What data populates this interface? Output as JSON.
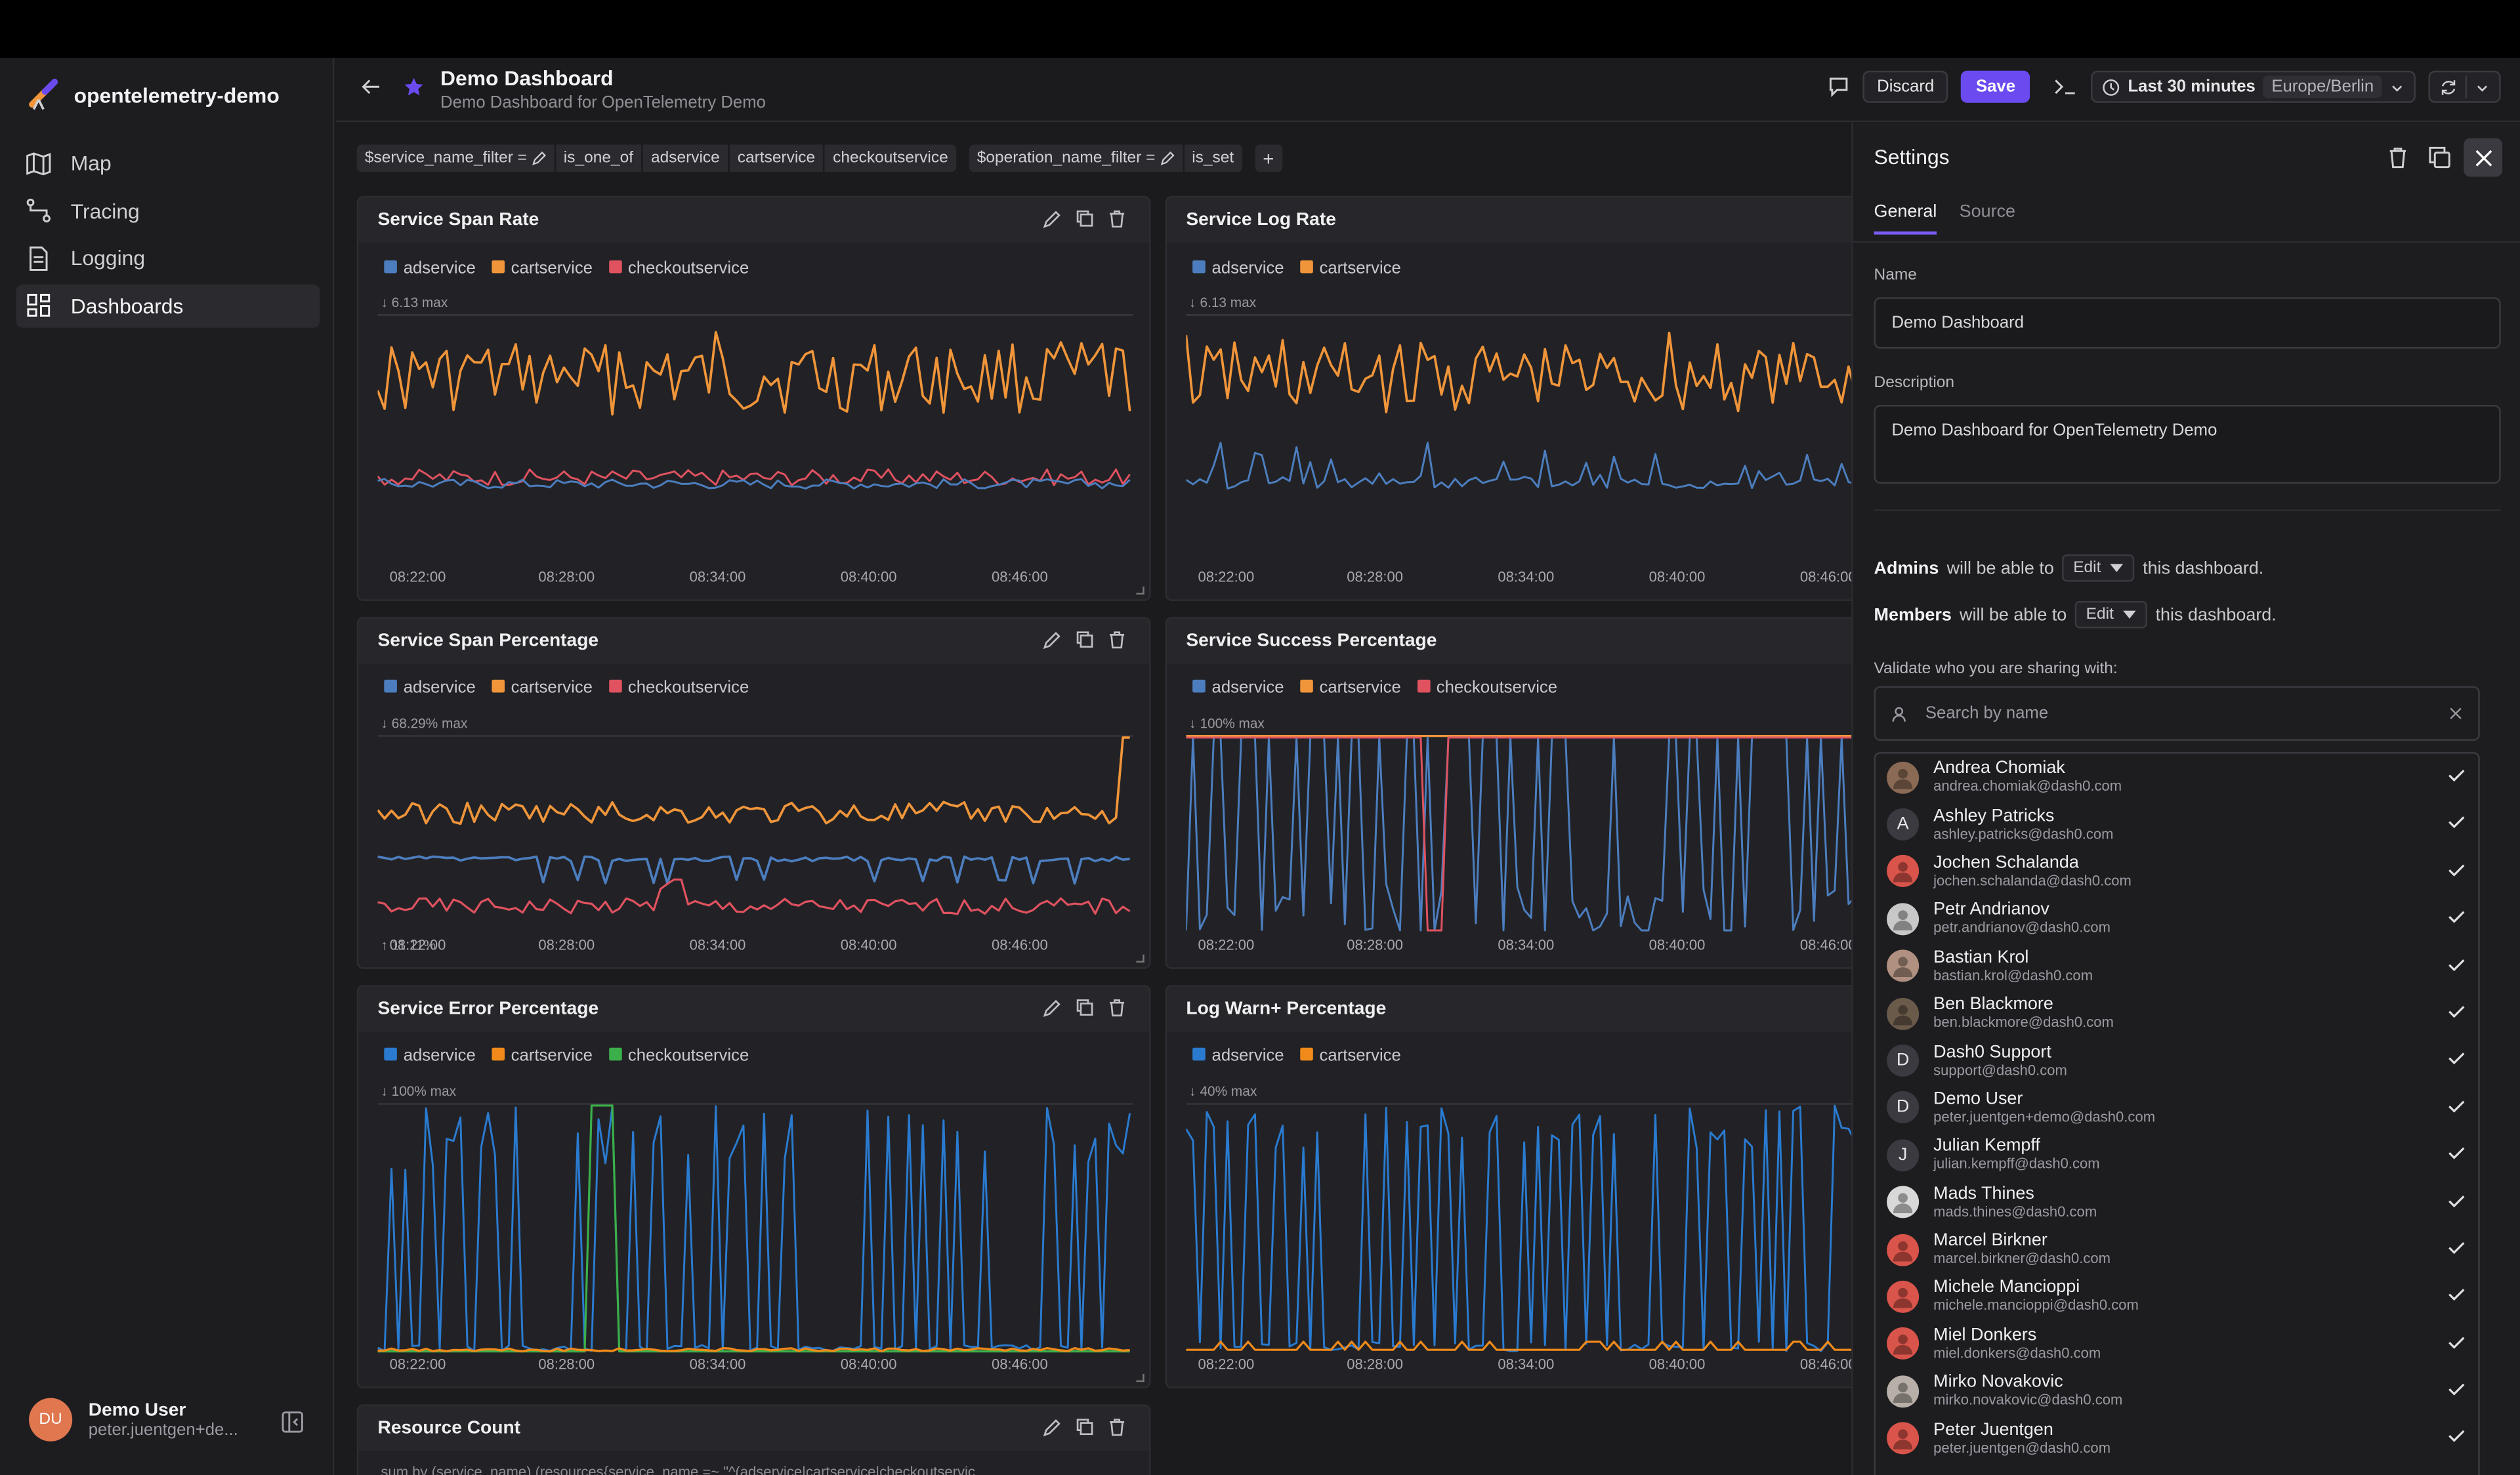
{
  "org_name": "opentelemetry-demo",
  "nav": [
    {
      "label": "Map",
      "icon": "map-icon"
    },
    {
      "label": "Tracing",
      "icon": "tracing-icon"
    },
    {
      "label": "Logging",
      "icon": "logging-icon"
    },
    {
      "label": "Dashboards",
      "icon": "dashboards-icon",
      "active": true
    }
  ],
  "current_user": {
    "name": "Demo User",
    "email": "peter.juentgen+de...",
    "initials": "DU"
  },
  "header": {
    "title": "Demo Dashboard",
    "subtitle": "Demo Dashboard for OpenTelemetry Demo",
    "discard_label": "Discard",
    "save_label": "Save",
    "time_range": "Last 30 minutes",
    "timezone": "Europe/Berlin"
  },
  "filters": {
    "f1": {
      "var": "$service_name_filter =",
      "op": "is_one_of",
      "values": [
        "adservice",
        "cartservice",
        "checkoutservice"
      ]
    },
    "f2": {
      "var": "$operation_name_filter =",
      "op": "is_set"
    }
  },
  "panels": [
    {
      "title": "Service Span Rate",
      "legend": [
        "adservice",
        "cartservice",
        "checkoutservice"
      ],
      "max": "6.13 max"
    },
    {
      "title": "Service Log Rate",
      "legend": [
        "adservice",
        "cartservice"
      ],
      "max": "6.13 max"
    },
    {
      "title": "Service Span Percentage",
      "legend": [
        "adservice",
        "cartservice",
        "checkoutservice"
      ],
      "max": "68.29% max",
      "min": "11.11%"
    },
    {
      "title": "Service Success Percentage",
      "legend": [
        "adservice",
        "cartservice",
        "checkoutservice"
      ],
      "max": "100% max"
    },
    {
      "title": "Service Error Percentage",
      "legend": [
        "adservice",
        "cartservice",
        "checkoutservice"
      ],
      "max": "100% max"
    },
    {
      "title": "Log Warn+ Percentage",
      "legend": [
        "adservice",
        "cartservice"
      ],
      "max": "40% max"
    },
    {
      "title": "Resource Count",
      "legend": [],
      "max": ""
    }
  ],
  "xticks": [
    "08:22:00",
    "08:28:00",
    "08:34:00",
    "08:40:00",
    "08:46:00"
  ],
  "colors": {
    "adservice": "#4c7ebf",
    "cartservice": "#f0953a",
    "checkoutservice": "#e05260",
    "adservice_err": "#2a7bd0",
    "cartservice_err": "#f08a1a",
    "checkoutservice_err": "#3bb04a",
    "accent": "#6b4bf0"
  },
  "settings": {
    "title": "Settings",
    "tabs": [
      "General",
      "Source"
    ],
    "name_label": "Name",
    "name_value": "Demo Dashboard",
    "desc_label": "Description",
    "desc_value": "Demo Dashboard for OpenTelemetry Demo",
    "admins_label": "Admins",
    "members_label": "Members",
    "will_be_able": "will be able to",
    "this_dashboard": "this dashboard.",
    "perm_value": "Edit",
    "validate_label": "Validate who you are sharing with:",
    "search_placeholder": "Search by name",
    "users": [
      {
        "name": "Andrea Chomiak",
        "email": "andrea.chomiak@dash0.com",
        "av": "photo",
        "color": "#8a6a55"
      },
      {
        "name": "Ashley Patricks",
        "email": "ashley.patricks@dash0.com",
        "av": "A",
        "color": "#3a3a40"
      },
      {
        "name": "Jochen Schalanda",
        "email": "jochen.schalanda@dash0.com",
        "av": "photo",
        "color": "#d9544a"
      },
      {
        "name": "Petr Andrianov",
        "email": "petr.andrianov@dash0.com",
        "av": "photo",
        "color": "#c8c8c8"
      },
      {
        "name": "Bastian Krol",
        "email": "bastian.krol@dash0.com",
        "av": "photo",
        "color": "#b09080"
      },
      {
        "name": "Ben Blackmore",
        "email": "ben.blackmore@dash0.com",
        "av": "photo",
        "color": "#6a5a4a"
      },
      {
        "name": "Dash0 Support",
        "email": "support@dash0.com",
        "av": "D",
        "color": "#3a3a40"
      },
      {
        "name": "Demo User",
        "email": "peter.juentgen+demo@dash0.com",
        "av": "D",
        "color": "#3a3a40"
      },
      {
        "name": "Julian Kempff",
        "email": "julian.kempff@dash0.com",
        "av": "J",
        "color": "#3a3a40"
      },
      {
        "name": "Mads Thines",
        "email": "mads.thines@dash0.com",
        "av": "photo",
        "color": "#d8d8d8"
      },
      {
        "name": "Marcel Birkner",
        "email": "marcel.birkner@dash0.com",
        "av": "photo",
        "color": "#d9544a"
      },
      {
        "name": "Michele Mancioppi",
        "email": "michele.mancioppi@dash0.com",
        "av": "photo",
        "color": "#d9544a"
      },
      {
        "name": "Miel Donkers",
        "email": "miel.donkers@dash0.com",
        "av": "photo",
        "color": "#d9544a"
      },
      {
        "name": "Mirko Novakovic",
        "email": "mirko.novakovic@dash0.com",
        "av": "photo",
        "color": "#b8b0a8"
      },
      {
        "name": "Peter Juentgen",
        "email": "peter.juentgen@dash0.com",
        "av": "photo",
        "color": "#d9544a"
      }
    ]
  },
  "resource_query": "sum by (service_name) (resources{service_name =~ \"^(adservice|cartservice|checkoutservic"
}
